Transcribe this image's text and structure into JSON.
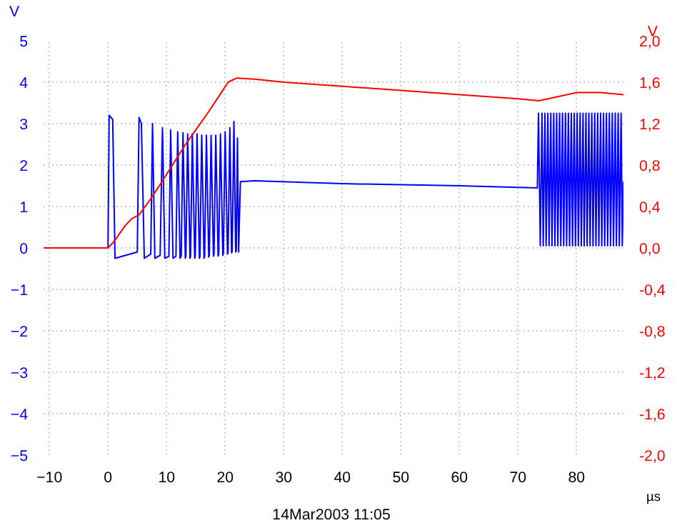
{
  "chart_data": {
    "type": "line",
    "xlabel": "µs",
    "ylabel": "V",
    "y2label": "V",
    "xlim": [
      -11,
      88
    ],
    "ylim": [
      -5,
      5
    ],
    "y2lim": [
      -2,
      2
    ],
    "xticks": [
      -10,
      0,
      10,
      20,
      30,
      40,
      50,
      60,
      70,
      80
    ],
    "yticks": [
      -5,
      -4,
      -3,
      -2,
      -1,
      0,
      1,
      2,
      3,
      4,
      5
    ],
    "y2ticks": [
      {
        "value": -2,
        "label": "-2,0"
      },
      {
        "value": -1.6,
        "label": "-1,6"
      },
      {
        "value": -1.2,
        "label": "-1,2"
      },
      {
        "value": -0.8,
        "label": "-0,8"
      },
      {
        "value": -0.4,
        "label": "-0,4"
      },
      {
        "value": 0,
        "label": "0,0"
      },
      {
        "value": 0.4,
        "label": "0,4"
      },
      {
        "value": 0.8,
        "label": "0,8"
      },
      {
        "value": 1.2,
        "label": "1,2"
      },
      {
        "value": 1.6,
        "label": "1,6"
      },
      {
        "value": 2,
        "label": "2,0"
      }
    ],
    "grid": true,
    "line_style": "solid",
    "annotations": [
      "14Mar2003  11:05"
    ],
    "series": [
      {
        "color": "#0000ff",
        "x": [
          -11,
          0,
          0.2,
          0.8,
          1.2,
          5.0,
          5.3,
          5.7,
          6.2,
          7.3,
          7.6,
          8.0,
          8.9,
          9.3,
          9.7,
          10.4,
          10.7,
          11.1,
          11.6,
          11.9,
          12.3,
          12.5,
          12.8,
          13.2,
          13.3,
          13.6,
          14.0,
          14.1,
          14.4,
          14.8,
          14.9,
          15.2,
          15.6,
          15.7,
          16.0,
          16.4,
          16.5,
          16.8,
          17.2,
          17.3,
          17.6,
          18.0,
          18.1,
          18.4,
          18.8,
          18.9,
          19.2,
          19.6,
          19.7,
          20.0,
          20.4,
          20.5,
          20.8,
          21.1,
          21.2,
          21.5,
          21.8,
          21.9,
          22.1,
          22.3,
          22.6,
          25,
          40,
          60,
          73.3,
          73.5,
          73.8,
          74.1,
          74.3,
          74.6,
          74.8,
          75.1,
          75.3,
          75.6,
          75.8,
          76.1,
          76.3,
          76.6,
          76.8,
          77.1,
          77.3,
          77.6,
          77.8,
          78.1,
          78.3,
          78.6,
          78.8,
          79.1,
          79.3,
          79.6,
          79.8,
          80.1,
          80.3,
          80.6,
          80.8,
          81.1,
          81.3,
          81.6,
          81.8,
          82.1,
          82.3,
          82.6,
          82.8,
          83.1,
          83.3,
          83.6,
          83.8,
          84.1,
          84.3,
          84.6,
          84.8,
          85.1,
          85.3,
          85.6,
          85.8,
          86.1,
          86.3,
          86.6,
          86.8,
          87.1,
          87.3,
          87.6,
          87.8,
          88
        ],
        "values": [
          0,
          0,
          3.2,
          3.1,
          -0.25,
          -0.1,
          3.15,
          3.0,
          -0.25,
          -0.15,
          3.0,
          -0.25,
          -0.18,
          2.9,
          -0.25,
          -0.2,
          2.85,
          -0.25,
          -0.2,
          2.8,
          -0.25,
          -0.2,
          2.78,
          -0.25,
          -0.2,
          2.75,
          -0.25,
          -0.2,
          2.75,
          -0.25,
          -0.2,
          2.75,
          -0.25,
          -0.2,
          2.72,
          -0.25,
          -0.2,
          2.72,
          -0.22,
          -0.18,
          2.72,
          -0.2,
          -0.15,
          2.72,
          -0.2,
          -0.15,
          2.75,
          -0.18,
          -0.12,
          2.8,
          -0.15,
          -0.1,
          2.9,
          -0.12,
          -0.08,
          3.05,
          -0.1,
          -0.05,
          2.65,
          -0.1,
          1.6,
          1.62,
          1.55,
          1.5,
          1.45,
          3.25,
          0.05,
          3.25,
          0.05,
          3.25,
          0.05,
          3.25,
          0.05,
          3.25,
          0.05,
          3.25,
          0.05,
          3.25,
          0.05,
          3.25,
          0.05,
          3.25,
          0.05,
          3.25,
          0.05,
          3.25,
          0.05,
          3.25,
          0.05,
          3.25,
          0.05,
          3.25,
          0.05,
          3.25,
          0.05,
          3.25,
          0.05,
          3.25,
          0.05,
          3.25,
          0.05,
          3.25,
          0.05,
          3.25,
          0.05,
          3.25,
          0.05,
          3.25,
          0.05,
          3.25,
          0.05,
          3.25,
          0.05,
          3.25,
          0.05,
          3.25,
          0.05,
          3.25,
          0.05,
          3.25,
          0.05,
          3.25,
          0.05,
          1.6
        ]
      },
      {
        "color": "#ff0000",
        "axis": "y2",
        "x": [
          -11,
          0,
          1,
          2,
          3,
          4,
          5.3,
          7,
          9,
          11,
          13,
          15,
          17,
          19,
          20.5,
          22,
          25,
          30,
          40,
          50,
          60,
          70,
          73.5,
          76,
          80,
          84,
          88
        ],
        "values": [
          0,
          0,
          0.06,
          0.14,
          0.22,
          0.28,
          0.32,
          0.45,
          0.62,
          0.8,
          0.98,
          1.14,
          1.3,
          1.47,
          1.6,
          1.64,
          1.63,
          1.6,
          1.56,
          1.52,
          1.48,
          1.44,
          1.42,
          1.45,
          1.5,
          1.5,
          1.48
        ]
      }
    ]
  }
}
